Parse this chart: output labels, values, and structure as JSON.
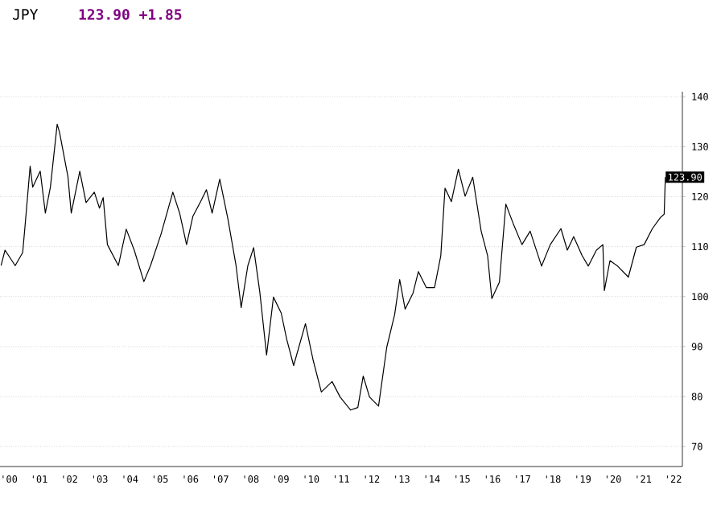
{
  "chart_data": {
    "type": "line",
    "title": "JPY",
    "annotations": [
      "123.90 +1.85",
      {
        "text": "123.90",
        "x": "2022-03-28",
        "y": 123.9
      }
    ],
    "x": [
      "2000-03-28",
      "2000-05-15",
      "2000-09-15",
      "2000-12-15",
      "2001-01-15",
      "2001-03-15",
      "2001-04-15",
      "2001-07-15",
      "2001-09-15",
      "2001-11-15",
      "2002-02-05",
      "2002-03-05",
      "2002-06-15",
      "2002-07-25",
      "2002-11-05",
      "2003-01-20",
      "2003-04-30",
      "2003-07-01",
      "2003-08-15",
      "2003-10-05",
      "2004-02-15",
      "2004-05-20",
      "2004-08-25",
      "2004-12-20",
      "2005-03-10",
      "2005-07-15",
      "2005-12-05",
      "2006-02-25",
      "2006-05-20",
      "2006-08-05",
      "2006-11-15",
      "2007-01-15",
      "2007-03-25",
      "2007-06-25",
      "2007-10-01",
      "2008-01-08",
      "2008-03-10",
      "2008-05-30",
      "2008-08-08",
      "2008-10-22",
      "2009-01-12",
      "2009-04-05",
      "2009-07-08",
      "2009-09-12",
      "2009-12-05",
      "2010-04-27",
      "2010-07-30",
      "2010-11-05",
      "2011-03-15",
      "2011-06-20",
      "2011-10-25",
      "2012-01-20",
      "2012-03-25",
      "2012-06-10",
      "2012-09-27",
      "2013-01-05",
      "2013-04-10",
      "2013-06-10",
      "2013-08-15",
      "2013-11-18",
      "2014-01-22",
      "2014-04-28",
      "2014-08-05",
      "2014-10-20",
      "2014-12-10",
      "2015-02-25",
      "2015-05-20",
      "2015-08-10",
      "2015-11-10",
      "2016-02-20",
      "2016-05-08",
      "2016-06-28",
      "2016-09-28",
      "2016-12-15",
      "2017-03-12",
      "2017-06-28",
      "2017-10-05",
      "2018-02-20",
      "2018-06-05",
      "2018-10-12",
      "2018-12-28",
      "2019-03-15",
      "2019-06-25",
      "2019-09-08",
      "2019-12-15",
      "2020-03-02",
      "2020-03-20",
      "2020-05-27",
      "2020-08-28",
      "2021-01-05",
      "2021-04-12",
      "2021-07-15",
      "2021-10-22",
      "2022-01-26",
      "2022-03-14",
      "2022-03-28"
    ],
    "series": [
      {
        "color": "#000000",
        "values": [
          106.2,
          109.3,
          106.2,
          108.8,
          114.6,
          126.1,
          121.9,
          125.1,
          116.7,
          121.9,
          134.5,
          132.9,
          124,
          116.7,
          125.1,
          118.8,
          120.9,
          117.7,
          119.8,
          110.4,
          106.2,
          113.5,
          109.3,
          103,
          106.2,
          112.5,
          120.9,
          116.7,
          110.4,
          116.1,
          119.3,
          121.4,
          116.7,
          123.5,
          115.6,
          106.2,
          97.8,
          106.2,
          109.8,
          100.9,
          88.3,
          99.9,
          96.7,
          91.5,
          86.2,
          94.6,
          87.2,
          80.9,
          83,
          79.9,
          77.3,
          77.8,
          84.1,
          79.9,
          78.1,
          89.9,
          96.4,
          103.4,
          97.5,
          100.7,
          105,
          101.8,
          101.8,
          108.2,
          121.7,
          119,
          125.5,
          120.1,
          123.9,
          113.1,
          108.2,
          99.6,
          102.9,
          118.5,
          114.7,
          110.4,
          113.1,
          106.1,
          110.4,
          113.6,
          109.3,
          112,
          108.2,
          106.1,
          109.3,
          110.4,
          101.2,
          107.2,
          106.1,
          103.9,
          109.9,
          110.4,
          113.6,
          115.8,
          116.5,
          123.9
        ]
      }
    ],
    "xlim": [
      "2000-03-15",
      "2022-10-20"
    ],
    "ylim": [
      66,
      141
    ],
    "xticks": [
      {
        "value": "2000-07-01",
        "label": "'00"
      },
      {
        "value": "2001-07-01",
        "label": "'01"
      },
      {
        "value": "2002-07-01",
        "label": "'02"
      },
      {
        "value": "2003-07-01",
        "label": "'03"
      },
      {
        "value": "2004-07-01",
        "label": "'04"
      },
      {
        "value": "2005-07-01",
        "label": "'05"
      },
      {
        "value": "2006-07-01",
        "label": "'06"
      },
      {
        "value": "2007-07-01",
        "label": "'07"
      },
      {
        "value": "2008-07-01",
        "label": "'08"
      },
      {
        "value": "2009-07-01",
        "label": "'09"
      },
      {
        "value": "2010-07-01",
        "label": "'10"
      },
      {
        "value": "2011-07-01",
        "label": "'11"
      },
      {
        "value": "2012-07-01",
        "label": "'12"
      },
      {
        "value": "2013-07-01",
        "label": "'13"
      },
      {
        "value": "2014-07-01",
        "label": "'14"
      },
      {
        "value": "2015-07-01",
        "label": "'15"
      },
      {
        "value": "2016-07-01",
        "label": "'16"
      },
      {
        "value": "2017-07-01",
        "label": "'17"
      },
      {
        "value": "2018-07-01",
        "label": "'18"
      },
      {
        "value": "2019-07-01",
        "label": "'19"
      },
      {
        "value": "2020-07-01",
        "label": "'20"
      },
      {
        "value": "2021-07-01",
        "label": "'21"
      },
      {
        "value": "2022-07-01",
        "label": "'22"
      }
    ],
    "yticks": [
      70,
      80,
      90,
      100,
      110,
      120,
      130,
      140
    ],
    "grid": "y",
    "marker": "none",
    "line_style": "solid"
  }
}
